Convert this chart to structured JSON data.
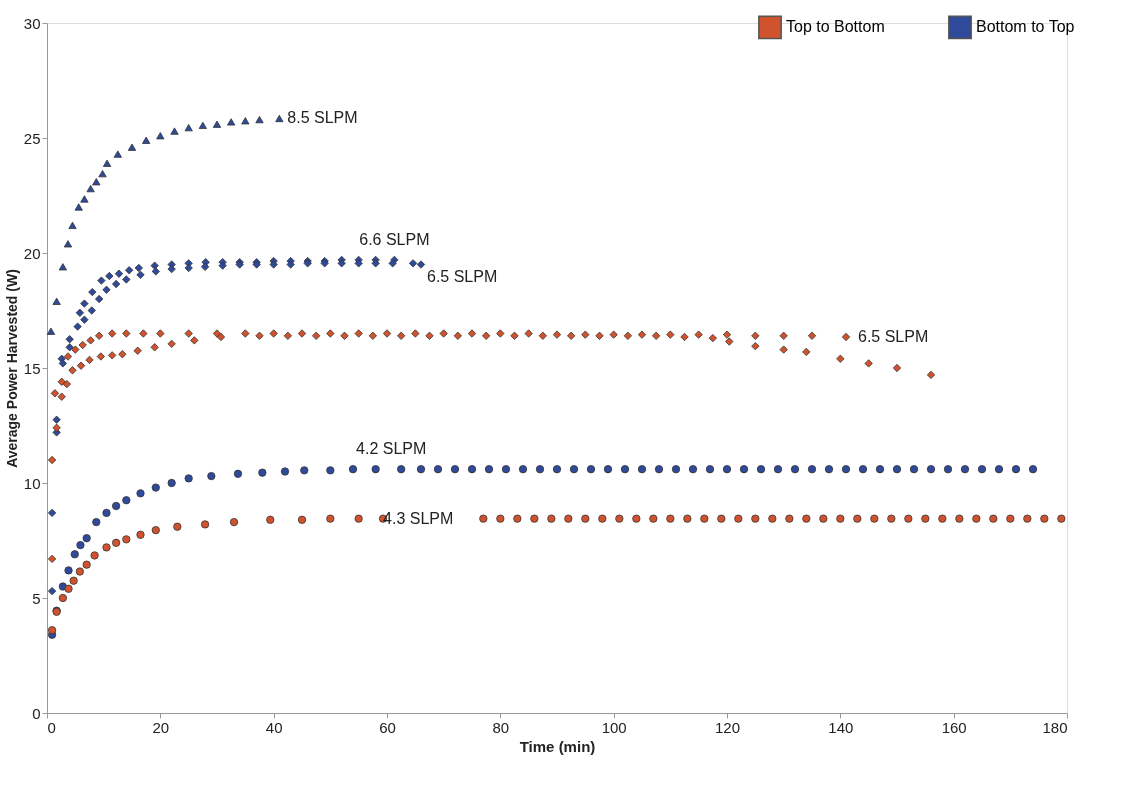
{
  "chart_data": {
    "type": "scatter",
    "xlabel": "Time (min)",
    "ylabel": "Average Power Harvested (W)",
    "xlim": [
      0,
      180
    ],
    "xticks": [
      0,
      20,
      40,
      60,
      80,
      100,
      120,
      140,
      160,
      180
    ],
    "ylim": [
      0,
      30
    ],
    "yticks": [
      0,
      5,
      10,
      15,
      20,
      25,
      30
    ],
    "grid": false,
    "legend": "top right",
    "series": [
      {
        "color": "#2f4a9a",
        "marker": "triangle",
        "x": [
          0.7,
          1.7,
          2.8,
          3.7,
          4.5,
          5.6,
          6.6,
          7.7,
          8.7,
          9.8,
          10.6,
          12.5,
          15,
          17.5,
          20,
          22.5,
          25,
          27.5,
          30,
          32.5,
          35,
          37.5,
          41
        ],
        "values": [
          16.6,
          17.9,
          19.4,
          20.4,
          21.2,
          22.0,
          22.35,
          22.8,
          23.1,
          23.45,
          23.9,
          24.3,
          24.6,
          24.9,
          25.1,
          25.3,
          25.45,
          25.55,
          25.6,
          25.7,
          25.75,
          25.8,
          25.85
        ]
      },
      {
        "color": "#2f4a9a",
        "marker": "diamond",
        "x": [
          0.9,
          1.7,
          2.6,
          4,
          5.8,
          6.6,
          8,
          9.6,
          11,
          12.7,
          14.5,
          16.2,
          19,
          22,
          25,
          28,
          31,
          34,
          37,
          40,
          43,
          46,
          49,
          52,
          55,
          58,
          61.3
        ],
        "values": [
          8.7,
          12.75,
          15.4,
          16.25,
          17.4,
          17.8,
          18.3,
          18.8,
          19.0,
          19.1,
          19.25,
          19.35,
          19.45,
          19.5,
          19.55,
          19.6,
          19.6,
          19.6,
          19.6,
          19.65,
          19.65,
          19.65,
          19.65,
          19.7,
          19.7,
          19.7,
          19.7
        ]
      },
      {
        "color": "#2f4a9a",
        "marker": "diamond",
        "x": [
          0.9,
          1.7,
          2.8,
          4,
          5.4,
          6.6,
          7.9,
          9.2,
          10.5,
          12.2,
          14,
          16.5,
          19.2,
          22,
          25,
          27.9,
          31,
          34,
          37,
          40,
          43,
          46,
          49,
          52,
          55,
          58,
          61,
          64.6,
          66
        ],
        "values": [
          5.3,
          12.2,
          15.2,
          15.9,
          16.8,
          17.1,
          17.5,
          18.0,
          18.4,
          18.65,
          18.85,
          19.05,
          19.2,
          19.3,
          19.35,
          19.4,
          19.45,
          19.5,
          19.5,
          19.5,
          19.5,
          19.55,
          19.55,
          19.55,
          19.55,
          19.55,
          19.55,
          19.55,
          19.5
        ]
      },
      {
        "name": "Top to Bottom",
        "color": "#d0532e",
        "marker": "diamond",
        "x": [
          0.9,
          1.4,
          2.6,
          3.7,
          5,
          6.3,
          7.7,
          9.2,
          11.5,
          14,
          17,
          20,
          25,
          30,
          35,
          40,
          45,
          50,
          55,
          60,
          65,
          70,
          75,
          80,
          85,
          90,
          95,
          100,
          105,
          110,
          115,
          120,
          125,
          130,
          135,
          141
        ],
        "values": [
          11.0,
          13.9,
          14.4,
          15.5,
          15.8,
          16.0,
          16.2,
          16.4,
          16.5,
          16.5,
          16.5,
          16.5,
          16.5,
          16.5,
          16.5,
          16.5,
          16.5,
          16.5,
          16.5,
          16.5,
          16.5,
          16.5,
          16.5,
          16.5,
          16.5,
          16.45,
          16.45,
          16.45,
          16.45,
          16.45,
          16.45,
          16.45,
          16.4,
          16.4,
          16.4,
          16.35
        ]
      },
      {
        "color": "#d0532e",
        "marker": "diamond",
        "x": [
          0.9,
          1.7,
          2.6,
          3.5,
          4.5,
          6,
          7.5,
          9.5,
          11.5,
          13.3,
          16,
          19,
          22,
          26,
          30.7,
          37.5,
          42.5,
          47.5,
          52.5,
          57.5,
          62.5,
          67.5,
          72.5,
          77.5,
          82.5,
          87.5,
          92.5,
          97.5,
          102.5,
          107.5,
          112.5,
          117.5,
          120.4,
          125,
          130,
          134,
          140,
          145,
          150,
          156
        ],
        "values": [
          6.7,
          12.4,
          13.75,
          14.3,
          14.9,
          15.1,
          15.35,
          15.5,
          15.55,
          15.6,
          15.75,
          15.9,
          16.05,
          16.2,
          16.35,
          16.4,
          16.4,
          16.4,
          16.4,
          16.4,
          16.4,
          16.4,
          16.4,
          16.4,
          16.4,
          16.4,
          16.4,
          16.4,
          16.4,
          16.4,
          16.35,
          16.3,
          16.15,
          15.95,
          15.8,
          15.7,
          15.4,
          15.2,
          15.0,
          14.7
        ]
      },
      {
        "name": "Bottom to Top",
        "color": "#2f4a9a",
        "marker": "circle",
        "x": [
          0.9,
          1.7,
          2.8,
          3.8,
          4.9,
          5.9,
          7,
          8.7,
          10.5,
          12.2,
          14,
          16.5,
          19.2,
          22,
          25,
          29,
          33.7,
          38,
          42,
          45.4,
          50,
          54,
          58,
          62.5,
          66,
          69,
          72,
          75,
          78,
          81,
          84,
          87,
          90,
          93,
          96,
          99,
          102,
          105,
          108,
          111,
          114,
          117,
          120,
          123,
          126,
          129,
          132,
          135,
          138,
          141,
          144,
          147,
          150,
          153,
          156,
          159,
          162,
          165,
          168,
          171,
          174
        ],
        "values": [
          3.4,
          4.45,
          5.5,
          6.2,
          6.9,
          7.3,
          7.6,
          8.3,
          8.7,
          9.0,
          9.25,
          9.55,
          9.8,
          10.0,
          10.2,
          10.3,
          10.4,
          10.45,
          10.5,
          10.55,
          10.55,
          10.6,
          10.6,
          10.6,
          10.6,
          10.6,
          10.6,
          10.6,
          10.6,
          10.6,
          10.6,
          10.6,
          10.6,
          10.6,
          10.6,
          10.6,
          10.6,
          10.6,
          10.6,
          10.6,
          10.6,
          10.6,
          10.6,
          10.6,
          10.6,
          10.6,
          10.6,
          10.6,
          10.6,
          10.6,
          10.6,
          10.6,
          10.6,
          10.6,
          10.6,
          10.6,
          10.6,
          10.6,
          10.6,
          10.6,
          10.6
        ]
      },
      {
        "color": "#d0532e",
        "marker": "circle",
        "x": [
          0.9,
          1.7,
          2.8,
          3.8,
          4.7,
          5.8,
          7,
          8.4,
          10.5,
          12.2,
          14,
          16.5,
          19.2,
          23,
          27.9,
          33,
          39.4,
          45,
          50,
          55,
          59.3,
          77,
          80,
          83,
          86,
          89,
          92,
          95,
          98,
          101,
          104,
          107,
          110,
          113,
          116,
          119,
          122,
          125,
          128,
          131,
          134,
          137,
          140,
          143,
          146,
          149,
          152,
          155,
          158,
          161,
          164,
          167,
          170,
          173,
          176,
          179
        ],
        "values": [
          3.6,
          4.4,
          5.0,
          5.4,
          5.75,
          6.15,
          6.45,
          6.85,
          7.2,
          7.4,
          7.55,
          7.75,
          7.95,
          8.1,
          8.2,
          8.3,
          8.4,
          8.4,
          8.45,
          8.45,
          8.45,
          8.45,
          8.45,
          8.45,
          8.45,
          8.45,
          8.45,
          8.45,
          8.45,
          8.45,
          8.45,
          8.45,
          8.45,
          8.45,
          8.45,
          8.45,
          8.45,
          8.45,
          8.45,
          8.45,
          8.45,
          8.45,
          8.45,
          8.45,
          8.45,
          8.45,
          8.45,
          8.45,
          8.45,
          8.45,
          8.45,
          8.45,
          8.45,
          8.45,
          8.45,
          8.45
        ]
      }
    ],
    "annotations": [
      {
        "text": "8.5 SLPM",
        "x": 41,
        "y": 25.85
      },
      {
        "text": "6.6 SLPM",
        "x": 61.3,
        "y": 19.7
      },
      {
        "text": "6.5 SLPM",
        "x": 66,
        "y": 19.5
      },
      {
        "text": "6.5 SLPM",
        "x": 141,
        "y": 16.35
      },
      {
        "text": "4.2 SLPM",
        "x": 62.5,
        "y": 10.6
      },
      {
        "text": "4.3 SLPM",
        "x": 59.3,
        "y": 8.45
      }
    ]
  }
}
